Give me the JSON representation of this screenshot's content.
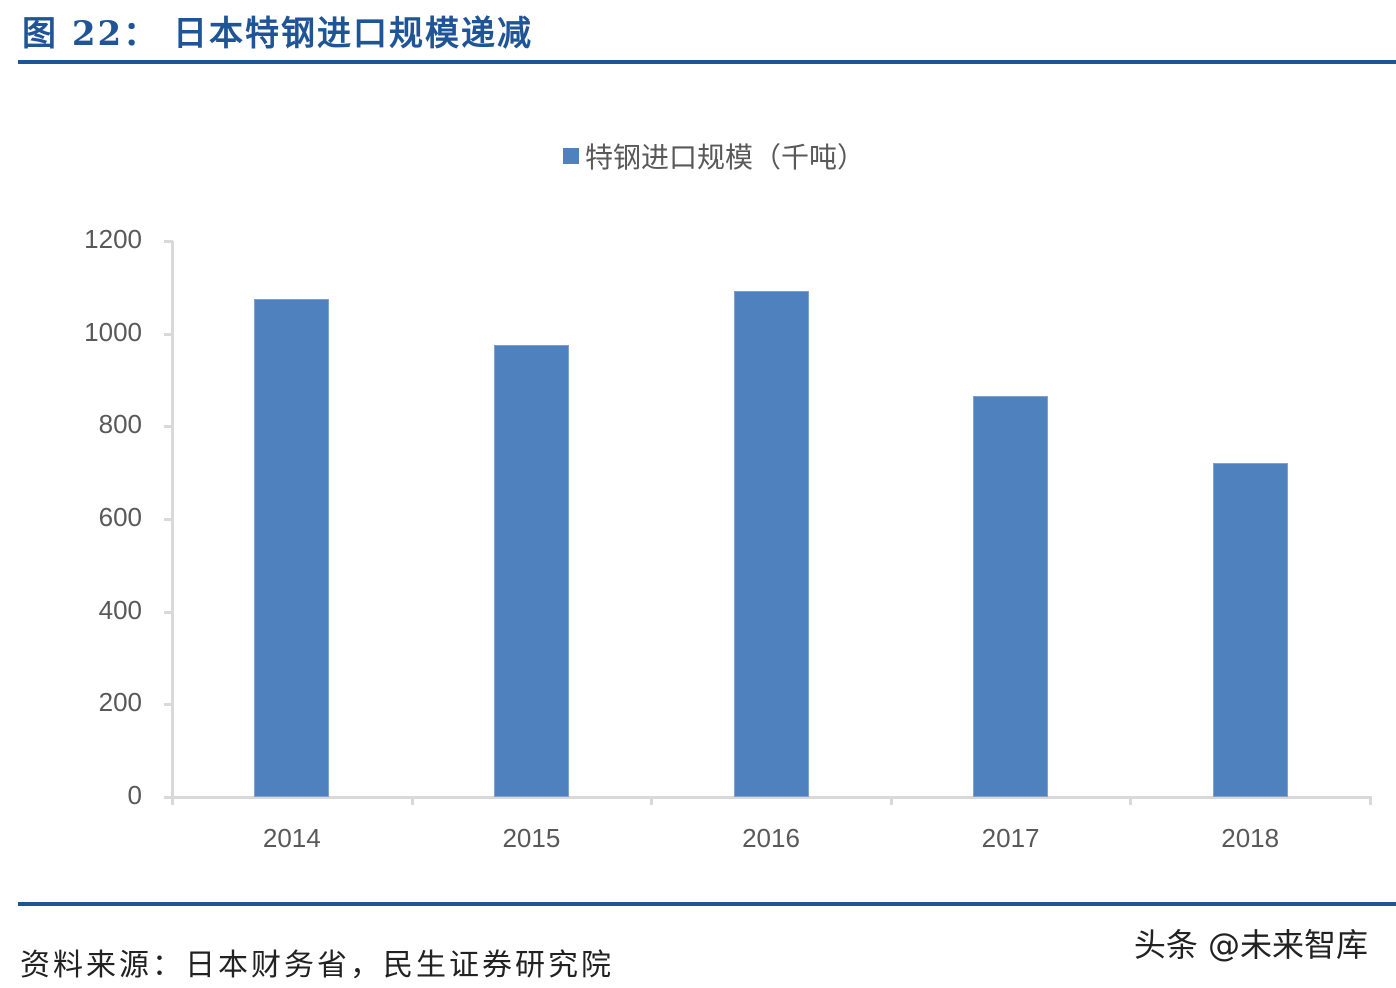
{
  "figure": {
    "title": "图 22： 日本特钢进口规模递减",
    "source": "资料来源：日本财务省，民生证券研究院",
    "watermark": "头条 @未来智库"
  },
  "colors": {
    "title": "#1f5597",
    "bar": "#4e81bd",
    "axis": "#d9d9d9",
    "tick_text": "#595959"
  },
  "chart_data": {
    "type": "bar",
    "title": "图 22： 日本特钢进口规模递减",
    "xlabel": "",
    "ylabel": "",
    "legend": [
      "特钢进口规模（千吨）"
    ],
    "legend_position": "top",
    "grid": false,
    "categories": [
      "2014",
      "2015",
      "2016",
      "2017",
      "2018"
    ],
    "series": [
      {
        "name": "特钢进口规模（千吨）",
        "values": [
          1075,
          976,
          1092,
          866,
          721
        ]
      }
    ],
    "ylim": [
      0,
      1200
    ],
    "yticks": [
      "0",
      "200",
      "400",
      "600",
      "800",
      "1000",
      "1200"
    ]
  }
}
